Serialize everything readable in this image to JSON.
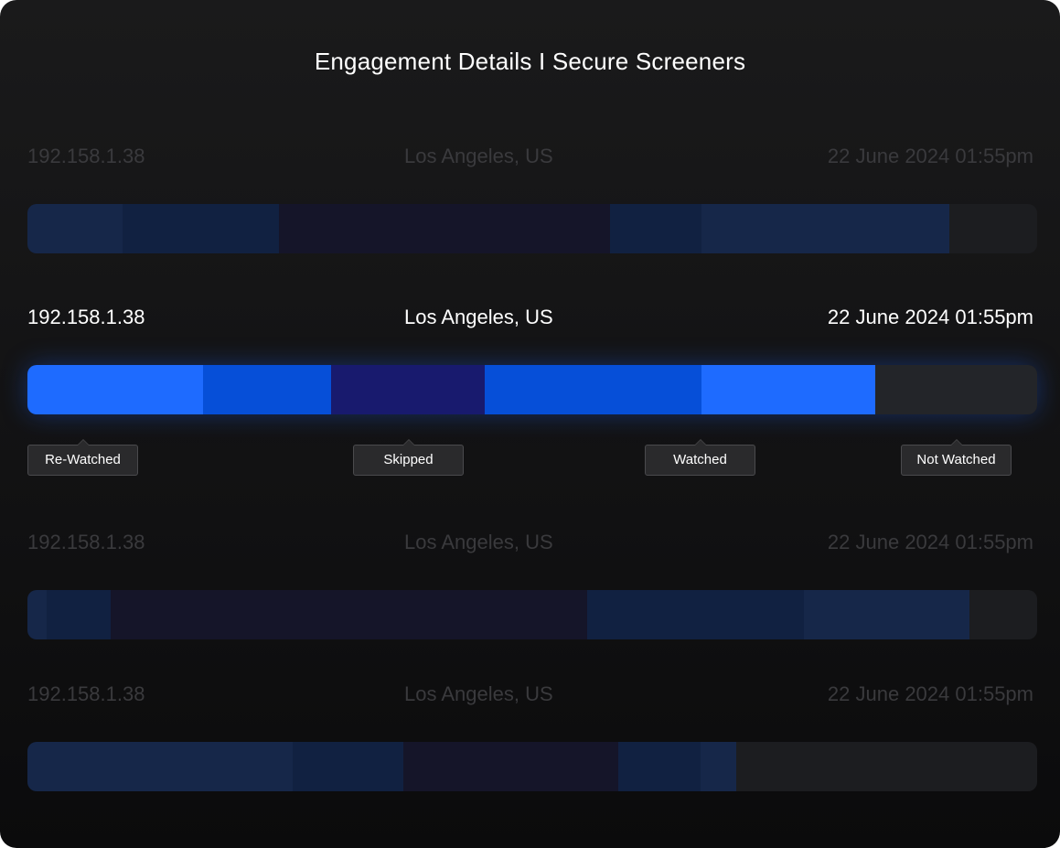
{
  "header": {
    "title": "Engagement Details I Secure Screeners"
  },
  "colors": {
    "rewatched": "#1e6bff",
    "watched": "#064fd8",
    "skipped": "#181a6e",
    "not_watched": "#232529"
  },
  "sessions": [
    {
      "ip": "192.158.1.38",
      "location": "Los Angeles, US",
      "timestamp": "22 June 2024 01:55pm",
      "state": "dimmed",
      "segments": [
        {
          "type": "rewatched",
          "fraction": 0.094
        },
        {
          "type": "watched",
          "fraction": 0.155
        },
        {
          "type": "skipped",
          "fraction": 0.328
        },
        {
          "type": "watched",
          "fraction": 0.091
        },
        {
          "type": "rewatched",
          "fraction": 0.245
        },
        {
          "type": "not_watched",
          "fraction": 0.087
        }
      ]
    },
    {
      "ip": "192.158.1.38",
      "location": "Los Angeles, US",
      "timestamp": "22 June 2024 01:55pm",
      "state": "active",
      "segments": [
        {
          "type": "rewatched",
          "fraction": 0.174
        },
        {
          "type": "watched",
          "fraction": 0.127
        },
        {
          "type": "skipped",
          "fraction": 0.152
        },
        {
          "type": "watched",
          "fraction": 0.215
        },
        {
          "type": "rewatched",
          "fraction": 0.172
        },
        {
          "type": "not_watched",
          "fraction": 0.16
        }
      ]
    },
    {
      "ip": "192.158.1.38",
      "location": "Los Angeles, US",
      "timestamp": "22 June 2024 01:55pm",
      "state": "dimmed",
      "segments": [
        {
          "type": "rewatched",
          "fraction": 0.019
        },
        {
          "type": "watched",
          "fraction": 0.063
        },
        {
          "type": "skipped",
          "fraction": 0.472
        },
        {
          "type": "watched",
          "fraction": 0.215
        },
        {
          "type": "rewatched",
          "fraction": 0.164
        },
        {
          "type": "not_watched",
          "fraction": 0.067
        }
      ]
    },
    {
      "ip": "192.158.1.38",
      "location": "Los Angeles, US",
      "timestamp": "22 June 2024 01:55pm",
      "state": "dimmed",
      "segments": [
        {
          "type": "rewatched",
          "fraction": 0.263
        },
        {
          "type": "watched",
          "fraction": 0.109
        },
        {
          "type": "skipped",
          "fraction": 0.213
        },
        {
          "type": "watched",
          "fraction": 0.082
        },
        {
          "type": "rewatched",
          "fraction": 0.035
        },
        {
          "type": "not_watched",
          "fraction": 0.298
        }
      ]
    }
  ],
  "legend": {
    "rewatched": "Re-Watched",
    "skipped": "Skipped",
    "watched": "Watched",
    "not_watched": "Not Watched"
  }
}
